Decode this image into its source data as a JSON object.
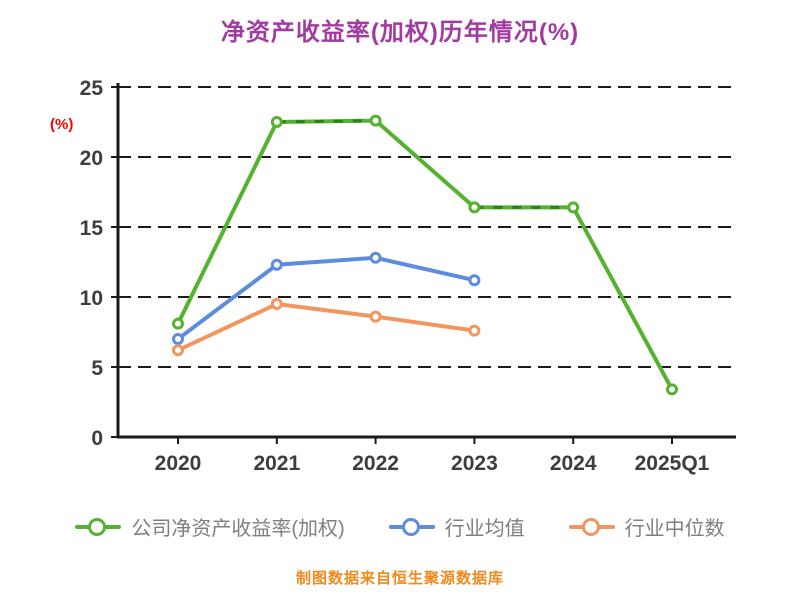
{
  "chart_data": {
    "type": "line",
    "title": "净资产收益率(加权)历年情况(%)",
    "title_color": "#A23AA2",
    "ylabel": "(%)",
    "ylabel_color": "#FF0000",
    "categories": [
      "2020",
      "2021",
      "2022",
      "2023",
      "2024",
      "2025Q1"
    ],
    "ylim": [
      0,
      25
    ],
    "ytick_step": 5,
    "grid": "horizontal-dashed",
    "axis_color": "#1A1A1A",
    "tick_label_color": "#3D3D3D",
    "legend_position": "bottom",
    "legend_text_color": "#7F7F7F",
    "series": [
      {
        "name": "公司净资产收益率(加权)",
        "color": "#55B22F",
        "values": [
          8.1,
          22.5,
          22.6,
          16.4,
          16.4,
          3.4
        ],
        "overlay_dashed_segments": [
          [
            1,
            2
          ],
          [
            3,
            4
          ]
        ],
        "overlay_color": "#2E7D1F"
      },
      {
        "name": "行业均值",
        "color": "#5C8BE0",
        "values": [
          7.0,
          12.3,
          12.8,
          11.2,
          null,
          null
        ],
        "overlay_dashed_segments": []
      },
      {
        "name": "行业中位数",
        "color": "#F2955F",
        "values": [
          6.2,
          9.5,
          8.6,
          7.6,
          null,
          null
        ],
        "overlay_dashed_segments": []
      }
    ],
    "source_note": "制图数据来自恒生聚源数据库",
    "source_note_color": "#EF8A1B"
  }
}
